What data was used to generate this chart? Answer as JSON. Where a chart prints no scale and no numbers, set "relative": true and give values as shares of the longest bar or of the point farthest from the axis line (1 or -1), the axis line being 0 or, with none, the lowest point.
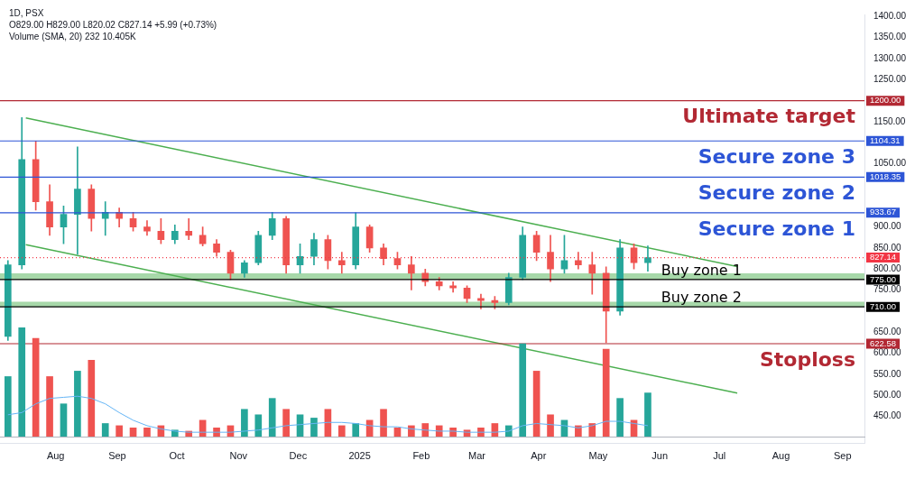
{
  "chart_data": [
    {
      "type": "candlestick",
      "annotations": [
        "1D, PSX",
        "O829.00 H829.00 L820.02 C827.14 +5.99 (+0.73%)",
        "Volume (SMA, 20) 232 10.405K",
        {
          "text": "Ultimate target",
          "y": 1200
        },
        {
          "text": "Secure zone 3",
          "y": 1104.31
        },
        {
          "text": "Secure zone 2",
          "y": 1018.35
        },
        {
          "text": "Secure zone 1",
          "y": 933.67
        },
        {
          "text": "Stoploss",
          "y": 622.58
        }
      ],
      "xlim": [
        "2024-07-04",
        "2025-09-12"
      ],
      "xticks": [
        {
          "value": "2024-08-01",
          "label": "Aug"
        },
        {
          "value": "2024-09-01",
          "label": "Sep"
        },
        {
          "value": "2024-10-01",
          "label": "Oct"
        },
        {
          "value": "2024-11-01",
          "label": "Nov"
        },
        {
          "value": "2024-12-01",
          "label": "Dec"
        },
        {
          "value": "2025-01-01",
          "label": "2025"
        },
        {
          "value": "2025-02-01",
          "label": "Feb"
        },
        {
          "value": "2025-03-01",
          "label": "Mar"
        },
        {
          "value": "2025-04-01",
          "label": "Apr"
        },
        {
          "value": "2025-05-01",
          "label": "May"
        },
        {
          "value": "2025-06-01",
          "label": "Jun"
        },
        {
          "value": "2025-07-01",
          "label": "Jul"
        },
        {
          "value": "2025-08-01",
          "label": "Aug"
        },
        {
          "value": "2025-09-01",
          "label": "Sep"
        }
      ],
      "ylim": [
        385,
        1405
      ],
      "yticks": [
        {
          "value": 450,
          "label": "450.00"
        },
        {
          "value": 500,
          "label": "500.00"
        },
        {
          "value": 550,
          "label": "550.00"
        },
        {
          "value": 600,
          "label": "600.00"
        },
        {
          "value": 650,
          "label": "650.00"
        },
        {
          "value": 750,
          "label": "750.00"
        },
        {
          "value": 800,
          "label": "800.00"
        },
        {
          "value": 850,
          "label": "850.00"
        },
        {
          "value": 900,
          "label": "900.00"
        },
        {
          "value": 1050,
          "label": "1050.00"
        },
        {
          "value": 1150,
          "label": "1150.00"
        },
        {
          "value": 1250,
          "label": "1250.00"
        },
        {
          "value": 1300,
          "label": "1300.00"
        },
        {
          "value": 1350,
          "label": "1350.00"
        },
        {
          "value": 1400,
          "label": "1400.00"
        }
      ],
      "x": [
        "2024-07-08",
        "2024-07-15",
        "2024-07-22",
        "2024-07-29",
        "2024-08-05",
        "2024-08-12",
        "2024-08-19",
        "2024-08-26",
        "2024-09-02",
        "2024-09-09",
        "2024-09-16",
        "2024-09-23",
        "2024-09-30",
        "2024-10-07",
        "2024-10-14",
        "2024-10-21",
        "2024-10-28",
        "2024-11-04",
        "2024-11-11",
        "2024-11-18",
        "2024-11-25",
        "2024-12-02",
        "2024-12-09",
        "2024-12-16",
        "2024-12-23",
        "2024-12-30",
        "2025-01-06",
        "2025-01-13",
        "2025-01-20",
        "2025-01-27",
        "2025-02-03",
        "2025-02-10",
        "2025-02-17",
        "2025-02-24",
        "2025-03-03",
        "2025-03-10",
        "2025-03-17",
        "2025-03-24",
        "2025-03-31",
        "2025-04-07",
        "2025-04-14",
        "2025-04-21",
        "2025-04-28",
        "2025-05-05",
        "2025-05-12",
        "2025-05-19",
        "2025-05-26"
      ],
      "series": [
        {
          "type": "candlestick",
          "ohlc": [
            [
              640,
              820,
              630,
              810
            ],
            [
              810,
              1160,
              800,
              1060
            ],
            [
              1060,
              1104,
              940,
              960
            ],
            [
              960,
              1000,
              880,
              900
            ],
            [
              900,
              950,
              860,
              930
            ],
            [
              930,
              1090,
              835,
              990
            ],
            [
              990,
              1000,
              890,
              920
            ],
            [
              920,
              960,
              880,
              935
            ],
            [
              935,
              945,
              900,
              920
            ],
            [
              920,
              935,
              890,
              900
            ],
            [
              900,
              915,
              880,
              890
            ],
            [
              890,
              920,
              860,
              870
            ],
            [
              870,
              905,
              860,
              890
            ],
            [
              890,
              920,
              870,
              880
            ],
            [
              880,
              900,
              855,
              860
            ],
            [
              860,
              870,
              830,
              840
            ],
            [
              840,
              845,
              775,
              790
            ],
            [
              790,
              820,
              780,
              815
            ],
            [
              815,
              890,
              810,
              880
            ],
            [
              880,
              935,
              870,
              920
            ],
            [
              920,
              925,
              790,
              810
            ],
            [
              810,
              860,
              790,
              830
            ],
            [
              830,
              885,
              810,
              870
            ],
            [
              870,
              880,
              800,
              820
            ],
            [
              820,
              840,
              790,
              810
            ],
            [
              810,
              934,
              800,
              900
            ],
            [
              900,
              905,
              840,
              850
            ],
            [
              850,
              860,
              810,
              825
            ],
            [
              825,
              840,
              800,
              810
            ],
            [
              810,
              830,
              750,
              790
            ],
            [
              790,
              800,
              760,
              770
            ],
            [
              770,
              780,
              750,
              760
            ],
            [
              760,
              770,
              745,
              755
            ],
            [
              755,
              760,
              720,
              730
            ],
            [
              730,
              740,
              705,
              725
            ],
            [
              725,
              735,
              705,
              720
            ],
            [
              720,
              790,
              715,
              780
            ],
            [
              780,
              900,
              775,
              880
            ],
            [
              880,
              890,
              820,
              840
            ],
            [
              840,
              880,
              770,
              800
            ],
            [
              800,
              880,
              790,
              820
            ],
            [
              820,
              840,
              800,
              810
            ],
            [
              810,
              840,
              740,
              790
            ],
            [
              790,
              805,
              625,
              700
            ],
            [
              700,
              870,
              690,
              850
            ],
            [
              850,
              860,
              800,
              815
            ],
            [
              815,
              855,
              795,
              827.14
            ]
          ],
          "colors": [
            "#26a69a",
            "#26a69a",
            "#ef5350",
            "#ef5350",
            "#26a69a",
            "#26a69a",
            "#ef5350",
            "#26a69a",
            "#ef5350",
            "#ef5350",
            "#ef5350",
            "#ef5350",
            "#26a69a",
            "#ef5350",
            "#ef5350",
            "#ef5350",
            "#ef5350",
            "#26a69a",
            "#26a69a",
            "#26a69a",
            "#ef5350",
            "#26a69a",
            "#26a69a",
            "#ef5350",
            "#ef5350",
            "#26a69a",
            "#ef5350",
            "#ef5350",
            "#ef5350",
            "#ef5350",
            "#ef5350",
            "#ef5350",
            "#ef5350",
            "#ef5350",
            "#ef5350",
            "#ef5350",
            "#26a69a",
            "#26a69a",
            "#ef5350",
            "#ef5350",
            "#26a69a",
            "#ef5350",
            "#ef5350",
            "#ef5350",
            "#26a69a",
            "#ef5350",
            "#26a69a"
          ]
        },
        {
          "type": "line",
          "color": "#4caf50",
          "x": [
            "2024-07-17",
            "2025-07-10"
          ],
          "values": [
            1159,
            806
          ]
        },
        {
          "type": "line",
          "color": "#4caf50",
          "x": [
            "2024-07-17",
            "2025-07-10"
          ],
          "values": [
            858,
            505
          ]
        }
      ],
      "ref_lines": [
        {
          "axis": "y",
          "value": 1200,
          "label": "1200.00",
          "color": "#b22833"
        },
        {
          "axis": "y",
          "value": 1104.31,
          "label": "1104.31",
          "color": "#2d55d6"
        },
        {
          "axis": "y",
          "value": 1018.35,
          "label": "1018.35",
          "color": "#2d55d6"
        },
        {
          "axis": "y",
          "value": 933.67,
          "label": "933.67",
          "color": "#2d55d6"
        },
        {
          "axis": "y",
          "value": 827.14,
          "label": "827.14",
          "color": "#f23645",
          "line_style": "dotted"
        },
        {
          "axis": "y",
          "value": 775,
          "label": "775.00",
          "color": "#000000"
        },
        {
          "axis": "y",
          "value": 710,
          "label": "710.00",
          "color": "#000000"
        },
        {
          "axis": "y",
          "value": 622.58,
          "label": "622.58",
          "color": "#b22833"
        }
      ],
      "bands": [
        {
          "axis": "y",
          "from": 775,
          "to": 790,
          "label": "Buy zone 1",
          "color": "#81c784"
        },
        {
          "axis": "y",
          "from": 710,
          "to": 722,
          "label": "Buy zone 2",
          "color": "#81c784"
        }
      ],
      "grid": false,
      "legend": false,
      "marker": "none",
      "line_style": "solid"
    },
    {
      "type": "bar",
      "relative": true,
      "tick_labels": false,
      "xlim": [
        "2024-07-04",
        "2025-09-12"
      ],
      "xticks": [
        {
          "value": "2024-08-01",
          "label": null
        },
        {
          "value": "2024-09-01",
          "label": null
        },
        {
          "value": "2024-10-01",
          "label": null
        },
        {
          "value": "2024-11-01",
          "label": null
        },
        {
          "value": "2024-12-01",
          "label": null
        },
        {
          "value": "2025-01-01",
          "label": null
        },
        {
          "value": "2025-02-01",
          "label": null
        },
        {
          "value": "2025-03-01",
          "label": null
        },
        {
          "value": "2025-04-01",
          "label": null
        },
        {
          "value": "2025-05-01",
          "label": null
        },
        {
          "value": "2025-06-01",
          "label": null
        },
        {
          "value": "2025-07-01",
          "label": null
        },
        {
          "value": "2025-08-01",
          "label": null
        },
        {
          "value": "2025-09-01",
          "label": null
        }
      ],
      "x": [
        "2024-07-08",
        "2024-07-15",
        "2024-07-22",
        "2024-07-29",
        "2024-08-05",
        "2024-08-12",
        "2024-08-19",
        "2024-08-26",
        "2024-09-02",
        "2024-09-09",
        "2024-09-16",
        "2024-09-23",
        "2024-09-30",
        "2024-10-07",
        "2024-10-14",
        "2024-10-21",
        "2024-10-28",
        "2024-11-04",
        "2024-11-11",
        "2024-11-18",
        "2024-11-25",
        "2024-12-02",
        "2024-12-09",
        "2024-12-16",
        "2024-12-23",
        "2024-12-30",
        "2025-01-06",
        "2025-01-13",
        "2025-01-20",
        "2025-01-27",
        "2025-02-03",
        "2025-02-10",
        "2025-02-17",
        "2025-02-24",
        "2025-03-03",
        "2025-03-10",
        "2025-03-17",
        "2025-03-24",
        "2025-03-31",
        "2025-04-07",
        "2025-04-14",
        "2025-04-21",
        "2025-04-28",
        "2025-05-05",
        "2025-05-12",
        "2025-05-19",
        "2025-05-26"
      ],
      "series": [
        {
          "type": "bar",
          "values": [
            0.55,
            1.0,
            0.9,
            0.55,
            0.3,
            0.6,
            0.7,
            0.12,
            0.1,
            0.08,
            0.08,
            0.1,
            0.06,
            0.05,
            0.15,
            0.08,
            0.1,
            0.25,
            0.2,
            0.35,
            0.25,
            0.2,
            0.17,
            0.25,
            0.1,
            0.12,
            0.15,
            0.25,
            0.08,
            0.1,
            0.12,
            0.1,
            0.08,
            0.06,
            0.08,
            0.12,
            0.1,
            0.85,
            0.6,
            0.2,
            0.15,
            0.1,
            0.12,
            0.8,
            0.35,
            0.15,
            0.4
          ],
          "colors": [
            "#26a69a",
            "#26a69a",
            "#ef5350",
            "#ef5350",
            "#26a69a",
            "#26a69a",
            "#ef5350",
            "#26a69a",
            "#ef5350",
            "#ef5350",
            "#ef5350",
            "#ef5350",
            "#26a69a",
            "#ef5350",
            "#ef5350",
            "#ef5350",
            "#ef5350",
            "#26a69a",
            "#26a69a",
            "#26a69a",
            "#ef5350",
            "#26a69a",
            "#26a69a",
            "#ef5350",
            "#ef5350",
            "#26a69a",
            "#ef5350",
            "#ef5350",
            "#ef5350",
            "#ef5350",
            "#ef5350",
            "#ef5350",
            "#ef5350",
            "#ef5350",
            "#ef5350",
            "#ef5350",
            "#26a69a",
            "#26a69a",
            "#ef5350",
            "#ef5350",
            "#26a69a",
            "#ef5350",
            "#ef5350",
            "#ef5350",
            "#26a69a",
            "#ef5350",
            "#26a69a"
          ]
        },
        {
          "type": "line",
          "color": "#64b5f6",
          "values": [
            0.2,
            0.22,
            0.3,
            0.35,
            0.36,
            0.37,
            0.35,
            0.3,
            0.22,
            0.15,
            0.1,
            0.07,
            0.05,
            0.04,
            0.04,
            0.04,
            0.04,
            0.05,
            0.06,
            0.08,
            0.1,
            0.11,
            0.12,
            0.13,
            0.13,
            0.12,
            0.1,
            0.09,
            0.09,
            0.07,
            0.06,
            0.05,
            0.05,
            0.04,
            0.04,
            0.04,
            0.05,
            0.1,
            0.12,
            0.11,
            0.1,
            0.08,
            0.1,
            0.14,
            0.14,
            0.12,
            0.1
          ]
        }
      ],
      "grid": false,
      "legend": false,
      "marker": "none",
      "line_style": "solid"
    }
  ]
}
